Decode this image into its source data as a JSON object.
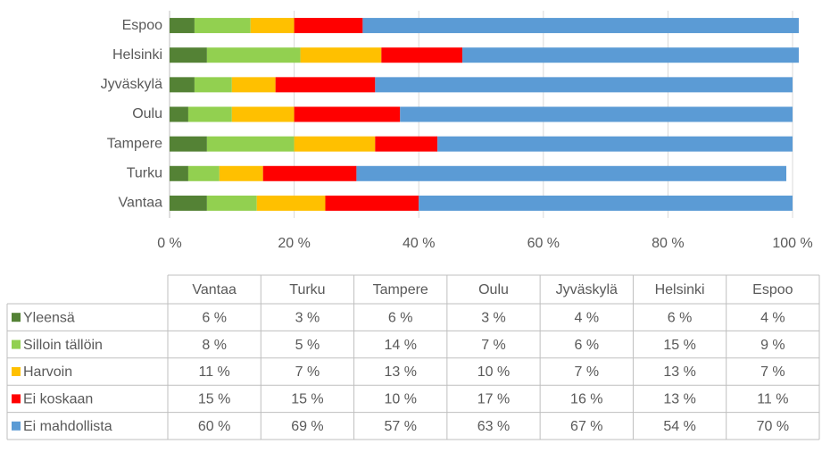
{
  "chart_data": {
    "type": "bar",
    "orientation": "horizontal",
    "stacked": true,
    "categories": [
      "Vantaa",
      "Turku",
      "Tampere",
      "Oulu",
      "Jyväskylä",
      "Helsinki",
      "Espoo"
    ],
    "series": [
      {
        "name": "Yleensä",
        "color": "#548235",
        "values": [
          6,
          3,
          6,
          3,
          4,
          6,
          4
        ],
        "value_labels": [
          "6 %",
          "3 %",
          "6 %",
          "3 %",
          "4 %",
          "6 %",
          "4 %"
        ]
      },
      {
        "name": "Silloin tällöin",
        "color": "#92d050",
        "values": [
          8,
          5,
          14,
          7,
          6,
          15,
          9
        ],
        "value_labels": [
          "8 %",
          "5 %",
          "14 %",
          "7 %",
          "6 %",
          "15 %",
          "9 %"
        ]
      },
      {
        "name": "Harvoin",
        "color": "#ffc000",
        "values": [
          11,
          7,
          13,
          10,
          7,
          13,
          7
        ],
        "value_labels": [
          "11 %",
          "7 %",
          "13 %",
          "10 %",
          "7 %",
          "13 %",
          "7 %"
        ]
      },
      {
        "name": "Ei koskaan",
        "color": "#ff0000",
        "values": [
          15,
          15,
          10,
          17,
          16,
          13,
          11
        ],
        "value_labels": [
          "15 %",
          "15 %",
          "10 %",
          "17 %",
          "16 %",
          "13 %",
          "11 %"
        ]
      },
      {
        "name": "Ei mahdollista",
        "color": "#5b9bd5",
        "values": [
          60,
          69,
          57,
          63,
          67,
          54,
          70
        ],
        "value_labels": [
          "60 %",
          "69 %",
          "57 %",
          "63 %",
          "67 %",
          "54 %",
          "70 %"
        ]
      }
    ],
    "xlim": [
      0,
      100
    ],
    "xticks": [
      {
        "value": 0,
        "label": "0 %"
      },
      {
        "value": 20,
        "label": "20 %"
      },
      {
        "value": 40,
        "label": "40 %"
      },
      {
        "value": 60,
        "label": "60 %"
      },
      {
        "value": 80,
        "label": "80 %"
      },
      {
        "value": 100,
        "label": "100 %"
      }
    ],
    "grid": true,
    "legend": "table"
  }
}
